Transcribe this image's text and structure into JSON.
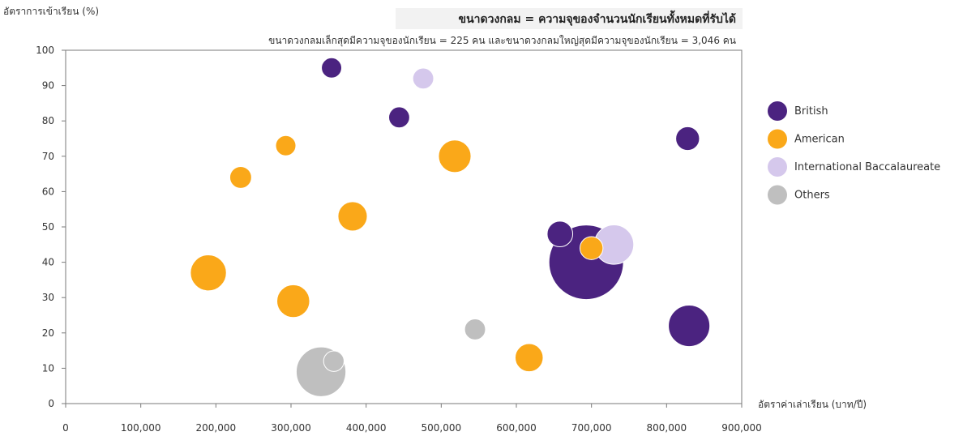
{
  "chart_data": {
    "type": "scatter",
    "subtype": "bubble",
    "title": "ขนาดวงกลม = ความจุของจำนวนนักเรียนทั้งหมดที่รับได้",
    "subtitle": "ขนาดวงกลมเล็กสุดมีความจุของนักเรียน = 225 คน และขนาดวงกลมใหญ่สุดมีความจุของนักเรียน = 3,046 คน",
    "xlabel": "อัตราค่าเล่าเรียน (บาท/ปี)",
    "ylabel": "อัตราการเข้าเรียน (%)",
    "xlim": [
      0,
      900000
    ],
    "ylim": [
      0,
      100
    ],
    "x_ticks": [
      0,
      100000,
      200000,
      300000,
      400000,
      500000,
      600000,
      700000,
      800000,
      900000
    ],
    "x_tick_labels": [
      "0",
      "100,000",
      "200,000",
      "300,000",
      "400,000",
      "500,000",
      "600,000",
      "700,000",
      "800,000",
      "900,000"
    ],
    "y_ticks": [
      0,
      10,
      20,
      30,
      40,
      50,
      60,
      70,
      80,
      90,
      100
    ],
    "y_tick_labels": [
      "0",
      "10",
      "20",
      "30",
      "40",
      "50",
      "60",
      "70",
      "80",
      "90",
      "100"
    ],
    "size_range": [
      225,
      3046
    ],
    "grid": false,
    "legend_position": "right",
    "series": [
      {
        "name": "British",
        "color": "#4B2380",
        "points": [
          {
            "x": 693000,
            "y": 40,
            "size": 3046
          },
          {
            "x": 830000,
            "y": 22,
            "size": 940
          },
          {
            "x": 828000,
            "y": 75,
            "size": 310
          },
          {
            "x": 658000,
            "y": 48,
            "size": 360
          },
          {
            "x": 444000,
            "y": 81,
            "size": 240
          },
          {
            "x": 354000,
            "y": 95,
            "size": 225
          }
        ]
      },
      {
        "name": "American",
        "color": "#FAA819",
        "points": [
          {
            "x": 190000,
            "y": 37,
            "size": 710
          },
          {
            "x": 303000,
            "y": 29,
            "size": 590
          },
          {
            "x": 382000,
            "y": 53,
            "size": 470
          },
          {
            "x": 518000,
            "y": 70,
            "size": 580
          },
          {
            "x": 233000,
            "y": 64,
            "size": 260
          },
          {
            "x": 293000,
            "y": 73,
            "size": 225
          },
          {
            "x": 617000,
            "y": 13,
            "size": 430
          },
          {
            "x": 700000,
            "y": 44,
            "size": 290
          }
        ]
      },
      {
        "name": "International Baccalaureate",
        "color": "#D5C8EC",
        "points": [
          {
            "x": 730000,
            "y": 45,
            "size": 850
          },
          {
            "x": 476000,
            "y": 92,
            "size": 240
          }
        ]
      },
      {
        "name": "Others",
        "color": "#BFBFBF",
        "points": [
          {
            "x": 340000,
            "y": 9,
            "size": 1350
          },
          {
            "x": 357000,
            "y": 12,
            "size": 230
          },
          {
            "x": 545000,
            "y": 21,
            "size": 240
          }
        ]
      }
    ]
  }
}
